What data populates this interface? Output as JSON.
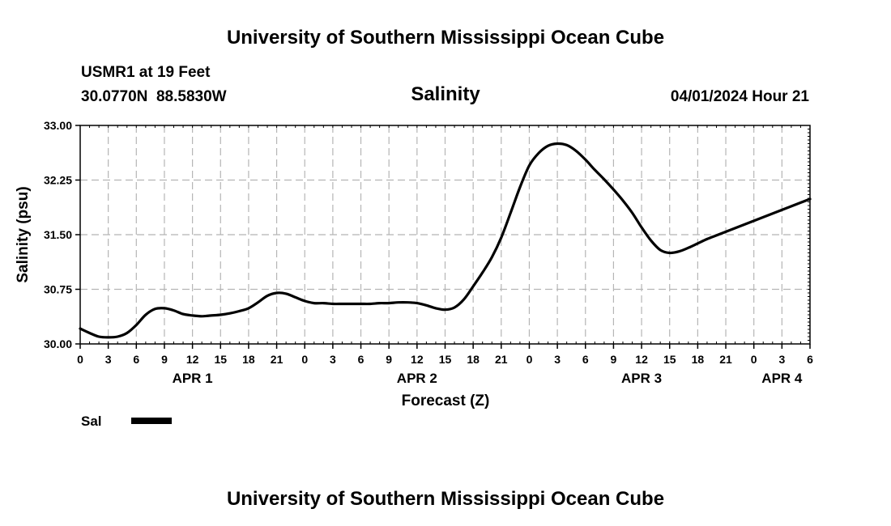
{
  "page": {
    "title_top": "University of Southern Mississippi Ocean Cube",
    "title_bottom": "University of Southern Mississippi Ocean Cube",
    "station_line": "USMR1 at 19 Feet",
    "coords_line": "30.0770N  88.5830W",
    "datetime": "04/01/2024 Hour 21",
    "legend_label": "Sal"
  },
  "chart_data": {
    "type": "line",
    "title": "Salinity",
    "xlabel": "Forecast (Z)",
    "ylabel": "Salinity (psu)",
    "ylim": [
      30.0,
      33.0
    ],
    "yticks": [
      "30.00",
      "30.75",
      "31.50",
      "32.25",
      "33.00"
    ],
    "xlim": [
      0,
      78
    ],
    "x_tick_step_hours": 3,
    "xtick_labels": [
      "0",
      "3",
      "6",
      "9",
      "12",
      "15",
      "18",
      "21",
      "0",
      "3",
      "6",
      "9",
      "12",
      "15",
      "18",
      "21",
      "0",
      "3",
      "6",
      "9",
      "12",
      "15",
      "18",
      "21",
      "0",
      "3",
      "6"
    ],
    "day_labels": [
      {
        "label": "APR 1",
        "hour": 12
      },
      {
        "label": "APR 2",
        "hour": 36
      },
      {
        "label": "APR 3",
        "hour": 60
      },
      {
        "label": "APR 4",
        "hour": 75
      }
    ],
    "grid": true,
    "line_color": "#000000",
    "series": [
      {
        "name": "Sal",
        "x": [
          0,
          1,
          2,
          3,
          4,
          5,
          6,
          7,
          8,
          9,
          10,
          11,
          12,
          13,
          14,
          15,
          16,
          17,
          18,
          19,
          20,
          21,
          22,
          23,
          24,
          25,
          26,
          27,
          28,
          29,
          30,
          31,
          32,
          33,
          34,
          35,
          36,
          37,
          38,
          39,
          40,
          41,
          42,
          43,
          44,
          45,
          46,
          47,
          48,
          49,
          50,
          51,
          52,
          53,
          54,
          55,
          56,
          57,
          58,
          59,
          60,
          61,
          62,
          63,
          64,
          65,
          66,
          67,
          68,
          69,
          70,
          71,
          72,
          73,
          74,
          75,
          76,
          77,
          78
        ],
        "values": [
          30.21,
          30.15,
          30.1,
          30.09,
          30.1,
          30.15,
          30.26,
          30.4,
          30.48,
          30.49,
          30.46,
          30.41,
          30.39,
          30.38,
          30.39,
          30.4,
          30.42,
          30.45,
          30.49,
          30.57,
          30.66,
          30.7,
          30.69,
          30.64,
          30.59,
          30.56,
          30.56,
          30.55,
          30.55,
          30.55,
          30.55,
          30.55,
          30.56,
          30.56,
          30.57,
          30.57,
          30.56,
          30.53,
          30.49,
          30.47,
          30.5,
          30.61,
          30.79,
          30.98,
          31.19,
          31.46,
          31.8,
          32.15,
          32.45,
          32.62,
          32.72,
          32.75,
          32.73,
          32.65,
          32.53,
          32.39,
          32.26,
          32.12,
          31.97,
          31.8,
          31.6,
          31.42,
          31.29,
          31.25,
          31.27,
          31.32,
          31.38,
          31.44,
          31.49,
          31.54,
          31.59,
          31.64,
          31.69,
          31.74,
          31.79,
          31.84,
          31.89,
          31.94,
          31.99
        ]
      }
    ]
  }
}
